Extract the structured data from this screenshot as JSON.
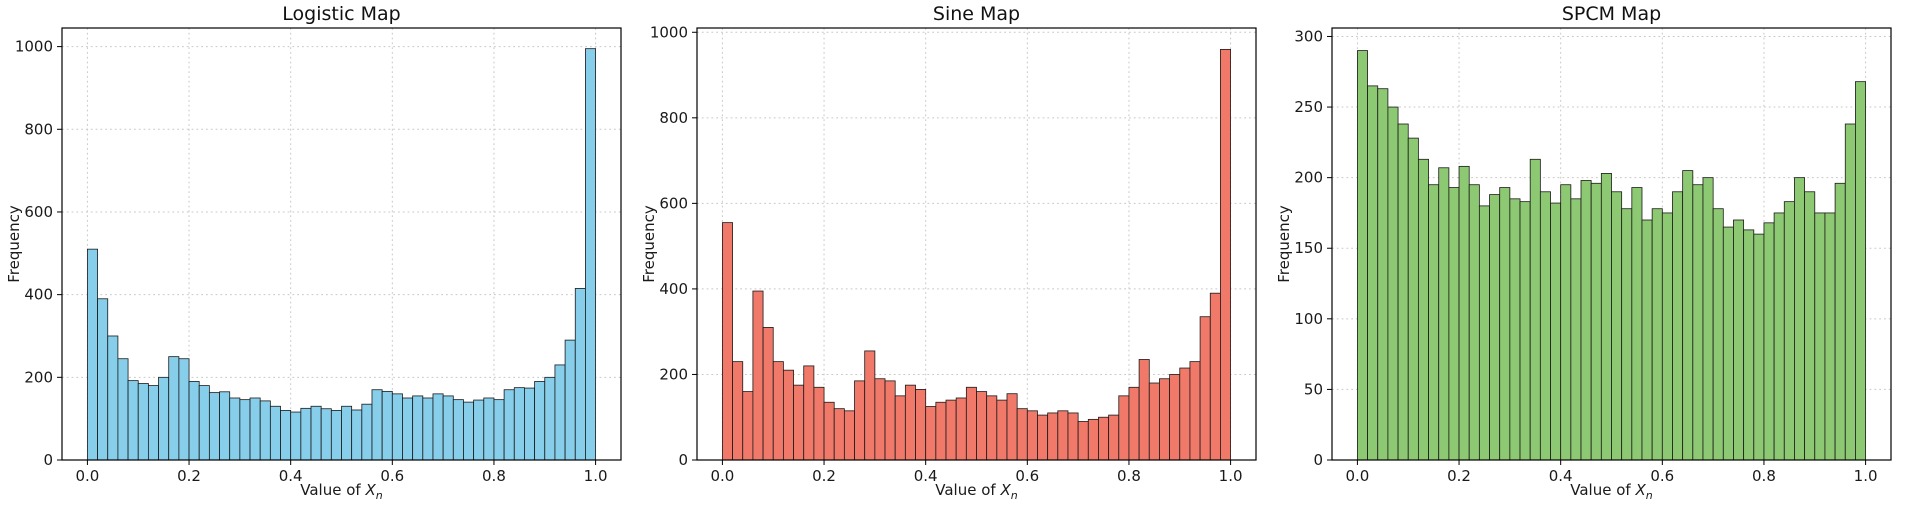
{
  "chart_data": [
    {
      "type": "bar",
      "subtype": "histogram",
      "title": "Logistic Map",
      "ylabel": "Frequency",
      "xlabel_prefix": "Value of ",
      "xlabel_var": "X",
      "xlabel_sub": "n",
      "color": "#87CEEB",
      "edge_color": "#1a1a1a",
      "grid_color": "#c8c8c8",
      "n_bins": 50,
      "x_range": [
        0,
        1
      ],
      "ymax": 1045,
      "yticks": [
        0,
        200,
        400,
        600,
        800,
        1000
      ],
      "xtick_values": [
        0,
        0.2,
        0.4,
        0.6,
        0.8,
        1.0
      ],
      "xtick_labels": [
        "0.0",
        "0.2",
        "0.4",
        "0.6",
        "0.8",
        "1.0"
      ],
      "values": [
        510,
        390,
        300,
        245,
        192,
        185,
        180,
        200,
        250,
        245,
        190,
        180,
        163,
        165,
        150,
        146,
        150,
        143,
        130,
        120,
        116,
        125,
        130,
        124,
        120,
        130,
        121,
        135,
        170,
        166,
        160,
        150,
        155,
        150,
        160,
        155,
        146,
        140,
        145,
        150,
        146,
        170,
        175,
        174,
        190,
        200,
        230,
        290,
        415,
        995
      ]
    },
    {
      "type": "bar",
      "subtype": "histogram",
      "title": "Sine Map",
      "ylabel": "Frequency",
      "xlabel_prefix": "Value of ",
      "xlabel_var": "X",
      "xlabel_sub": "n",
      "color": "#F0796A",
      "edge_color": "#1a1a1a",
      "grid_color": "#c8c8c8",
      "n_bins": 50,
      "x_range": [
        0,
        1
      ],
      "ymax": 1010,
      "yticks": [
        0,
        200,
        400,
        600,
        800,
        1000
      ],
      "xtick_values": [
        0,
        0.2,
        0.4,
        0.6,
        0.8,
        1.0
      ],
      "xtick_labels": [
        "0.0",
        "0.2",
        "0.4",
        "0.6",
        "0.8",
        "1.0"
      ],
      "values": [
        555,
        230,
        160,
        395,
        310,
        230,
        210,
        175,
        220,
        170,
        135,
        120,
        115,
        185,
        255,
        190,
        185,
        150,
        175,
        165,
        125,
        135,
        140,
        145,
        170,
        160,
        150,
        140,
        155,
        120,
        115,
        105,
        110,
        115,
        110,
        90,
        95,
        100,
        105,
        150,
        170,
        235,
        180,
        190,
        200,
        215,
        230,
        335,
        390,
        960
      ]
    },
    {
      "type": "bar",
      "subtype": "histogram",
      "title": "SPCM Map",
      "ylabel": "Frequency",
      "xlabel_prefix": "Value of ",
      "xlabel_var": "X",
      "xlabel_sub": "n",
      "color": "#8DC872",
      "edge_color": "#1a1a1a",
      "grid_color": "#c8c8c8",
      "n_bins": 50,
      "x_range": [
        0,
        1
      ],
      "ymax": 306,
      "yticks": [
        0,
        50,
        100,
        150,
        200,
        250,
        300
      ],
      "xtick_values": [
        0,
        0.2,
        0.4,
        0.6,
        0.8,
        1.0
      ],
      "xtick_labels": [
        "0.0",
        "0.2",
        "0.4",
        "0.6",
        "0.8",
        "1.0"
      ],
      "values": [
        290,
        265,
        263,
        250,
        238,
        228,
        213,
        195,
        207,
        193,
        208,
        195,
        180,
        188,
        193,
        185,
        183,
        213,
        190,
        182,
        195,
        185,
        198,
        196,
        203,
        190,
        178,
        193,
        170,
        178,
        175,
        190,
        205,
        195,
        200,
        178,
        165,
        170,
        163,
        160,
        168,
        175,
        183,
        200,
        190,
        175,
        175,
        196,
        238,
        268
      ]
    }
  ]
}
